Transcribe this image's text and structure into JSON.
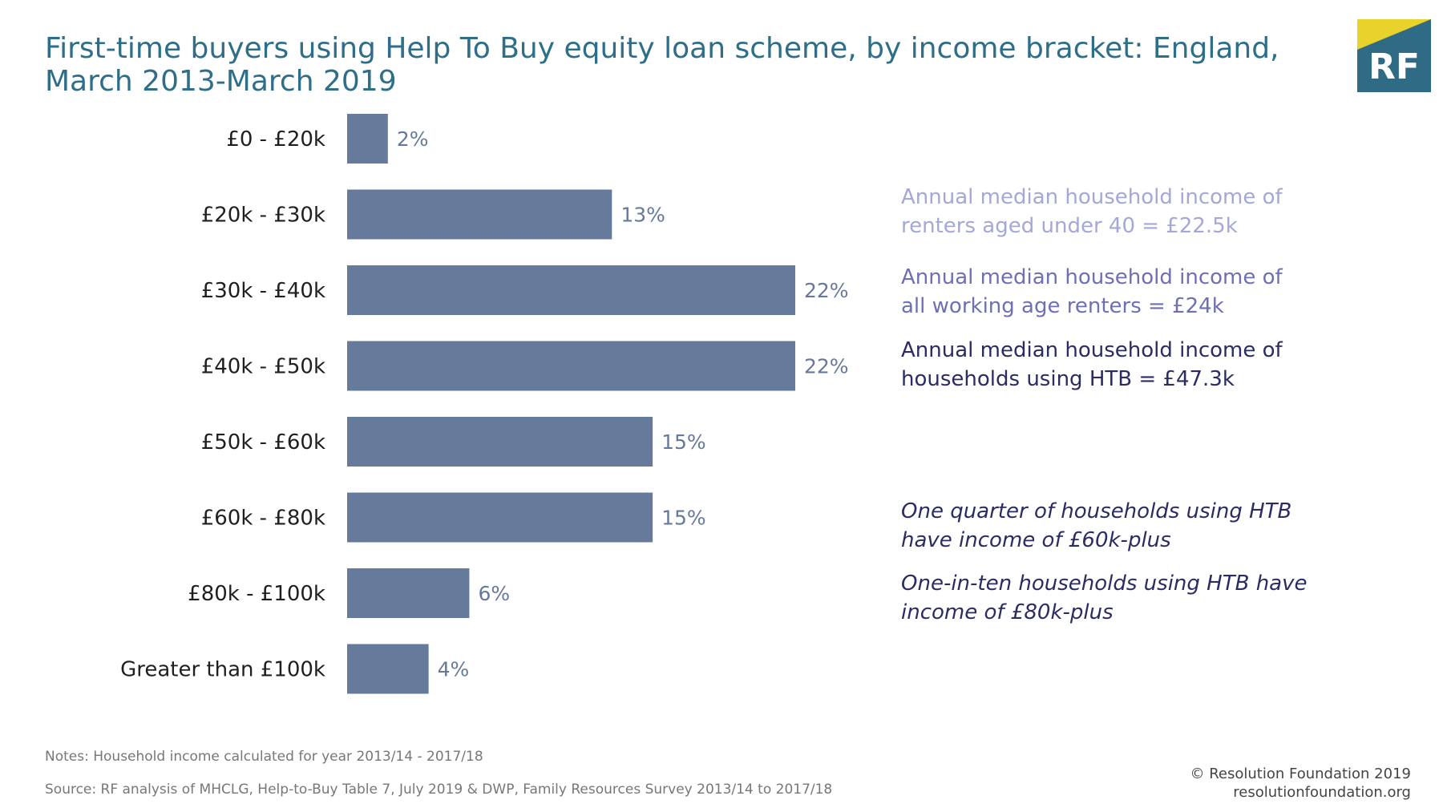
{
  "title": "First-time buyers using Help To Buy equity loan scheme, by income bracket: England, March 2013-March 2019",
  "logo": {
    "text": "RF",
    "colors": {
      "box": "#2f6b85",
      "corner": "#e8d22b",
      "text": "#ffffff"
    }
  },
  "chart_data": {
    "type": "bar",
    "orientation": "horizontal",
    "categories": [
      "£0 - £20k",
      "£20k - £30k",
      "£30k - £40k",
      "£40k - £50k",
      "£50k - £60k",
      "£60k - £80k",
      "£80k - £100k",
      "Greater than £100k"
    ],
    "values": [
      2,
      13,
      22,
      22,
      15,
      15,
      6,
      4
    ],
    "value_labels": [
      "2%",
      "13%",
      "22%",
      "22%",
      "15%",
      "15%",
      "6%",
      "4%"
    ],
    "unit": "%",
    "xlim": [
      0,
      22
    ],
    "grid": false,
    "legend": "none",
    "colors": {
      "bar": "#667b9c",
      "value_label": "#66799c",
      "category_label": "#1f1f1f"
    }
  },
  "annotations": [
    {
      "text": "Annual median household income of renters aged under 40 = £22.5k",
      "color": "#a4a8d6"
    },
    {
      "text": "Annual median household income of all working age renters = £24k",
      "color": "#6e6fb5"
    },
    {
      "text": "Annual median household income of households using HTB = £47.3k",
      "color": "#2a2c63"
    },
    {
      "text": "One quarter of households using HTB have income of £60k-plus",
      "color": "#2a2c63"
    },
    {
      "text": "One-in-ten households using HTB have income of £80k-plus",
      "color": "#2a2c63"
    }
  ],
  "notes": "Notes: Household income calculated for year 2013/14 - 2017/18",
  "source": "Source: RF analysis of MHCLG, Help-to-Buy Table 7, July 2019 & DWP, Family Resources Survey 2013/14 to 2017/18",
  "copyright": "© Resolution Foundation 2019",
  "website": "resolutionfoundation.org"
}
